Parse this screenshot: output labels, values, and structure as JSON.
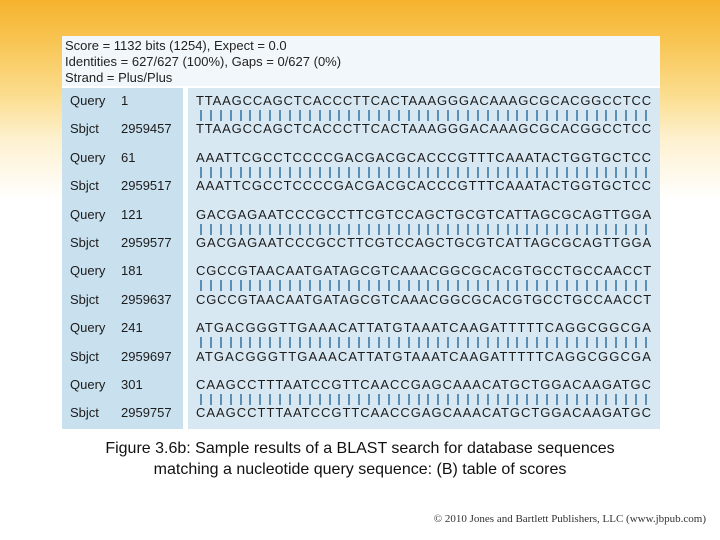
{
  "header": {
    "score_line": "Score = 1132 bits (1254), Expect = 0.0",
    "identities_line": "Identities = 627/627 (100%), Gaps = 0/627 (0%)",
    "strand_line": "Strand = Plus/Plus"
  },
  "alignment": [
    {
      "query_label": "Query",
      "query_pos": "1",
      "query_seq": "TTAAGCCAGCTCACCCTTCACTAAAGGGACAAAGCGCACGGCCTCC",
      "sbjct_label": "Sbjct",
      "sbjct_pos": "2959457",
      "sbjct_seq": "TTAAGCCAGCTCACCCTTCACTAAAGGGACAAAGCGCACGGCCTCC"
    },
    {
      "query_label": "Query",
      "query_pos": "61",
      "query_seq": "AAATTCGCCTCCCCGACGACGCACCCGTTTCAAATACTGGTGCTCC",
      "sbjct_label": "Sbjct",
      "sbjct_pos": "2959517",
      "sbjct_seq": "AAATTCGCCTCCCCGACGACGCACCCGTTTCAAATACTGGTGCTCC"
    },
    {
      "query_label": "Query",
      "query_pos": "121",
      "query_seq": "GACGAGAATCCCGCCTTCGTCCAGCTGCGTCATTAGCGCAGTTGGA",
      "sbjct_label": "Sbjct",
      "sbjct_pos": "2959577",
      "sbjct_seq": "GACGAGAATCCCGCCTTCGTCCAGCTGCGTCATTAGCGCAGTTGGA"
    },
    {
      "query_label": "Query",
      "query_pos": "181",
      "query_seq": "CGCCGTAACAATGATAGCGTCAAACGGCGCACGTGCCTGCCAACCT",
      "sbjct_label": "Sbjct",
      "sbjct_pos": "2959637",
      "sbjct_seq": "CGCCGTAACAATGATAGCGTCAAACGGCGCACGTGCCTGCCAACCT"
    },
    {
      "query_label": "Query",
      "query_pos": "241",
      "query_seq": "ATGACGGGTTGAAACATTATGTAAATCAAGATTTTTCAGGCGGCGA",
      "sbjct_label": "Sbjct",
      "sbjct_pos": "2959697",
      "sbjct_seq": "ATGACGGGTTGAAACATTATGTAAATCAAGATTTTTCAGGCGGCGA"
    },
    {
      "query_label": "Query",
      "query_pos": "301",
      "query_seq": "CAAGCCTTTAATCCGTTCAACCGAGCAAACATGCTGGACAAGATGC",
      "sbjct_label": "Sbjct",
      "sbjct_pos": "2959757",
      "sbjct_seq": "CAAGCCTTTAATCCGTTCAACCGAGCAAACATGCTGGACAAGATGC"
    }
  ],
  "caption": {
    "line1": "Figure 3.6b: Sample results of a BLAST search for database sequences",
    "line2": "matching a nucleotide query sequence: (B) table of scores"
  },
  "copyright": "© 2010 Jones and Bartlett Publishers, LLC (www.jbpub.com)",
  "colors": {
    "header_bg": "#f2f7fb",
    "label_panel_bg": "#c9e0ee",
    "sequence_panel_bg": "#d7e8f3",
    "match_bar": "#5b8fb6"
  }
}
